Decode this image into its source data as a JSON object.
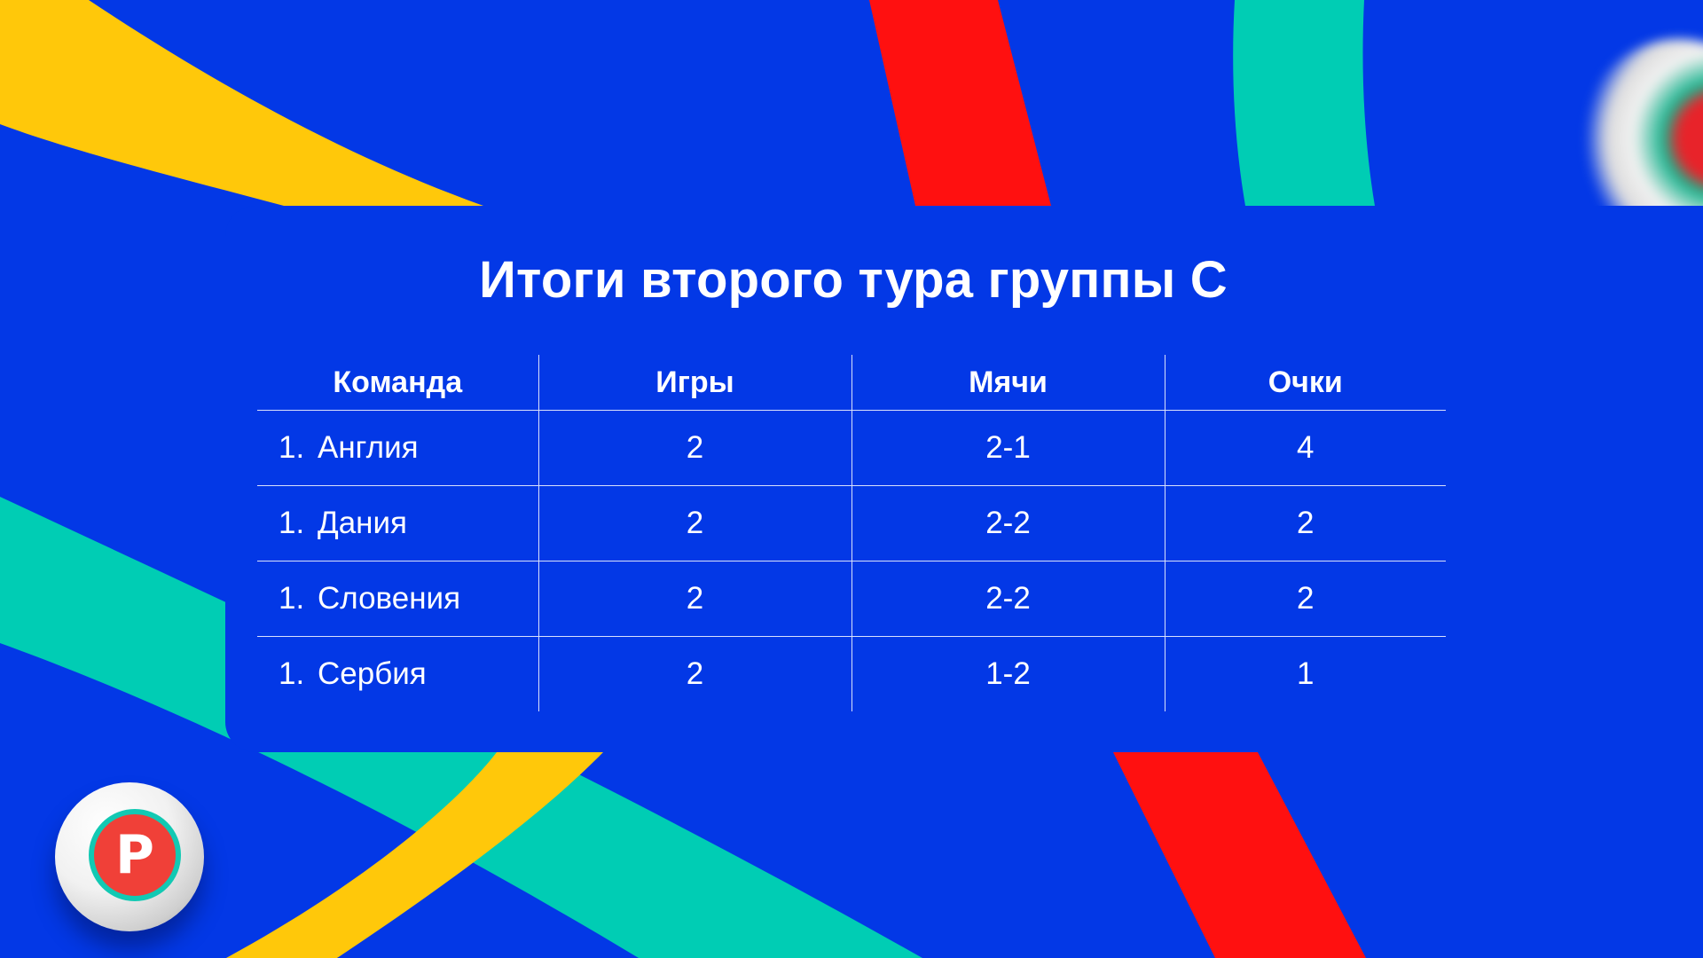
{
  "title": "Итоги второго тура группы С",
  "table": {
    "headers": [
      "Команда",
      "Игры",
      "Мячи",
      "Очки"
    ],
    "rows": [
      {
        "rank": "1.",
        "team": "Англия",
        "games": "2",
        "goals": "2-1",
        "points": "4"
      },
      {
        "rank": "1.",
        "team": "Дания",
        "games": "2",
        "goals": "2-2",
        "points": "2"
      },
      {
        "rank": "1.",
        "team": "Словения",
        "games": "2",
        "goals": "2-2",
        "points": "2"
      },
      {
        "rank": "1.",
        "team": "Сербия",
        "games": "2",
        "goals": "1-2",
        "points": "1"
      }
    ]
  },
  "colors": {
    "background": "#0338e6",
    "yellow": "#ffc80a",
    "red": "#ff1010",
    "teal": "#00cdb4",
    "text": "#ffffff"
  },
  "icons": [
    "soccer-ball-icon"
  ]
}
